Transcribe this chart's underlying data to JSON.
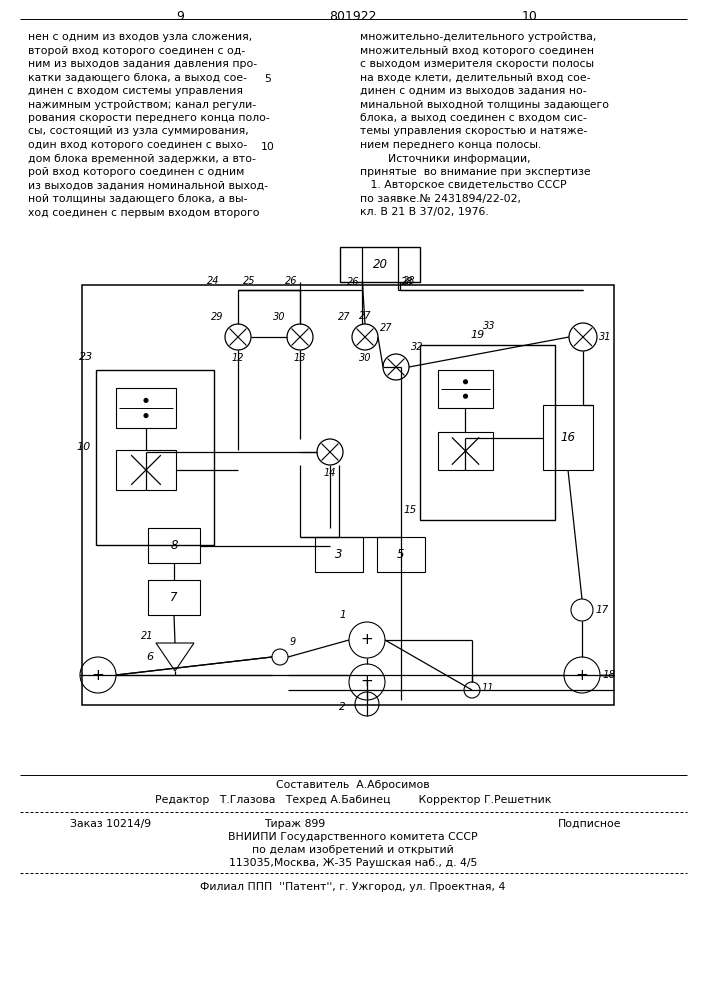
{
  "page_number_left": "9",
  "patent_number": "801922",
  "page_number_right": "10",
  "col_left_text": [
    "нен с одним из входов узла сложения,",
    "второй вход которого соединен с од-",
    "ним из выходов задания давления про-",
    "катки задающего блока, а выход сое-",
    "динен с входом системы управления",
    "нажимным устройством; канал регули-",
    "рования скорости переднего конца поло-",
    "сы, состоящий из узла суммирования,",
    "один вход которого соединен с выхо-",
    "дом блока временной задержки, а вто-",
    "рой вход которого соединен с одним",
    "из выходов задания номинальной выход-",
    "ной толщины задающего блока, а вы-",
    "ход соединен с первым входом второго"
  ],
  "col_right_text": [
    "множительно-делительного устройства,",
    "множительный вход которого соединен",
    "с выходом измерителя скорости полосы",
    "на входе клети, делительный вход сое-",
    "динен с одним из выходов задания но-",
    "минальной выходной толщины задающего",
    "блока, а выход соединен с входом сис-",
    "темы управления скоростью и натяже-",
    "нием переднего конца полосы.",
    "        Источники информации,",
    "принятые  во внимание при экспертизе",
    "   1. Авторское свидетельство СССР",
    "по заявке.№ 2431894/22-02,",
    "кл. В 21 В 37/02, 1976."
  ],
  "line_num_5_row": 4,
  "line_num_10_row": 9,
  "composer_line": "Составитель  А.Абросимов",
  "editor_line": "Редактор   Т.Глазова   Техред А.Бабинец        Корректор Г.Решетник",
  "order_line": "Заказ 10214/9          Тираж 899                   Подписное",
  "vniip_line1": "ВНИИПИ Государственного комитета СССР",
  "vniip_line2": "по делам изобретений и открытий",
  "vniip_line3": "113035,Москва, Ж-35 Раушская наб., д. 4/5",
  "filial_line": "Филиал ППП  ''Патент'', г. Ужгород, ул. Проектная, 4",
  "bg_color": "#ffffff",
  "text_color": "#000000"
}
